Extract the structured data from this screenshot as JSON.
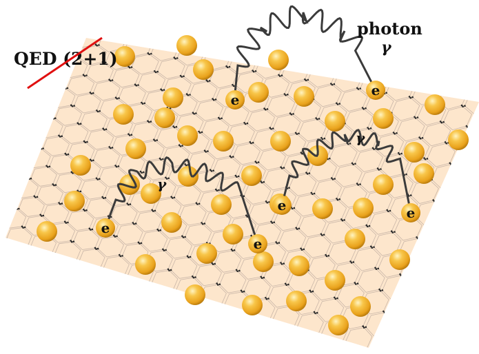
{
  "labels": {
    "theory": "QED (2+1)",
    "photon_word": "photon",
    "photon_symbol": "γ",
    "gamma_left": "γ",
    "gamma_right": "γ",
    "electron": "e"
  },
  "colors": {
    "sheet": "#fde6cc",
    "lattice": "#c9b6a8",
    "sphere": "#f2b12c",
    "wavy": "#3b3b3b",
    "strike": "#e01010"
  }
}
